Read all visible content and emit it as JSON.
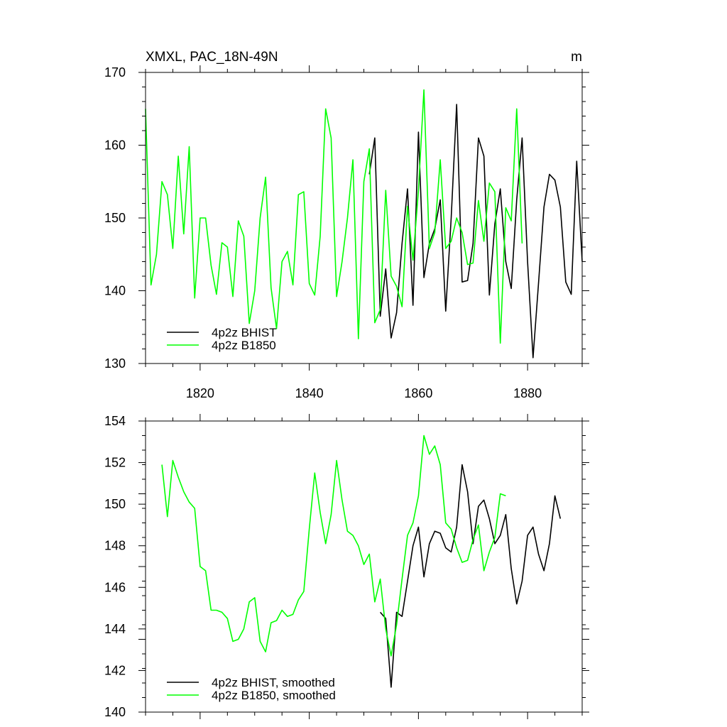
{
  "chart_data": [
    {
      "type": "line",
      "title": "XMXL, PAC_18N-49N",
      "units": "m",
      "xlim": [
        1810,
        1890
      ],
      "ylim": [
        130,
        170
      ],
      "x_ticks": [
        "1820",
        "1840",
        "1860",
        "1880"
      ],
      "y_ticks": [
        "130",
        "140",
        "150",
        "160",
        "170"
      ],
      "grid": false,
      "legend": "bottom-left",
      "series": [
        {
          "name": "4p2z BHIST",
          "color": "#000000",
          "start_year": 1851,
          "values": [
            156.0,
            161.0,
            136.5,
            143.0,
            133.5,
            137.0,
            146.5,
            154.0,
            138.0,
            161.8,
            141.8,
            146.5,
            148.5,
            152.5,
            137.2,
            150.0,
            165.6,
            141.2,
            141.4,
            146.5,
            161.0,
            158.5,
            139.4,
            149.2,
            154.0,
            144.0,
            140.3,
            152.5,
            161.0,
            144.0,
            130.8,
            141.0,
            151.5,
            156.0,
            155.2,
            151.5,
            141.2,
            139.5,
            157.8,
            144.0
          ]
        },
        {
          "name": "4p2z B1850",
          "color": "#00ff00",
          "start_year": 1810,
          "values": [
            165.0,
            140.8,
            145.0,
            155.0,
            153.2,
            145.8,
            158.5,
            147.8,
            159.8,
            139.0,
            150.0,
            150.0,
            143.5,
            139.5,
            146.6,
            146.0,
            139.2,
            149.6,
            147.5,
            135.5,
            140.0,
            150.0,
            155.6,
            140.4,
            134.8,
            144.0,
            145.4,
            140.8,
            153.2,
            153.6,
            141.0,
            139.4,
            147.5,
            165.0,
            161.0,
            139.2,
            144.0,
            150.0,
            158.0,
            133.4,
            155.0,
            159.5,
            135.6,
            137.4,
            153.8,
            142.0,
            140.6,
            137.8,
            151.6,
            144.2,
            153.8,
            167.6,
            145.8,
            148.0,
            158.0,
            145.8,
            146.8,
            150.0,
            148.0,
            143.6,
            143.8,
            152.4,
            146.8,
            154.8,
            153.6,
            132.8,
            151.4,
            149.6,
            165.0,
            146.5
          ]
        }
      ]
    },
    {
      "type": "line",
      "title": "",
      "xlim": [
        1810,
        1890
      ],
      "ylim": [
        140,
        154
      ],
      "x_ticks": [],
      "y_ticks": [
        "140",
        "142",
        "144",
        "146",
        "148",
        "150",
        "152",
        "154"
      ],
      "grid": false,
      "legend": "bottom-left",
      "series": [
        {
          "name": "4p2z BHIST, smoothed",
          "color": "#000000",
          "start_year": 1853,
          "values": [
            144.8,
            144.5,
            141.2,
            144.8,
            144.6,
            146.3,
            148.0,
            148.9,
            146.5,
            148.1,
            148.7,
            148.6,
            147.9,
            147.7,
            148.9,
            151.9,
            150.6,
            148.1,
            149.9,
            150.2,
            149.3,
            148.1,
            148.5,
            149.5,
            146.9,
            145.2,
            146.3,
            148.5,
            148.9,
            147.6,
            146.8,
            148.1,
            150.4,
            149.3
          ]
        },
        {
          "name": "4p2z B1850, smoothed",
          "color": "#00ff00",
          "start_year": 1813,
          "values": [
            151.9,
            149.4,
            152.1,
            151.3,
            150.6,
            150.1,
            149.8,
            147.0,
            146.8,
            144.9,
            144.9,
            144.8,
            144.5,
            143.4,
            143.5,
            144.0,
            145.3,
            145.5,
            143.4,
            142.9,
            144.3,
            144.4,
            144.9,
            144.6,
            144.7,
            145.4,
            145.8,
            148.8,
            151.5,
            149.6,
            148.1,
            149.5,
            152.1,
            150.2,
            148.7,
            148.5,
            148.0,
            147.1,
            147.6,
            145.3,
            146.4,
            144.0,
            142.7,
            144.2,
            146.4,
            148.5,
            149.1,
            150.4,
            153.3,
            152.4,
            152.8,
            151.9,
            149.1,
            148.8,
            147.9,
            147.2,
            147.3,
            148.3,
            149.0,
            146.8,
            147.7,
            148.4,
            150.5,
            150.4
          ]
        }
      ]
    }
  ]
}
